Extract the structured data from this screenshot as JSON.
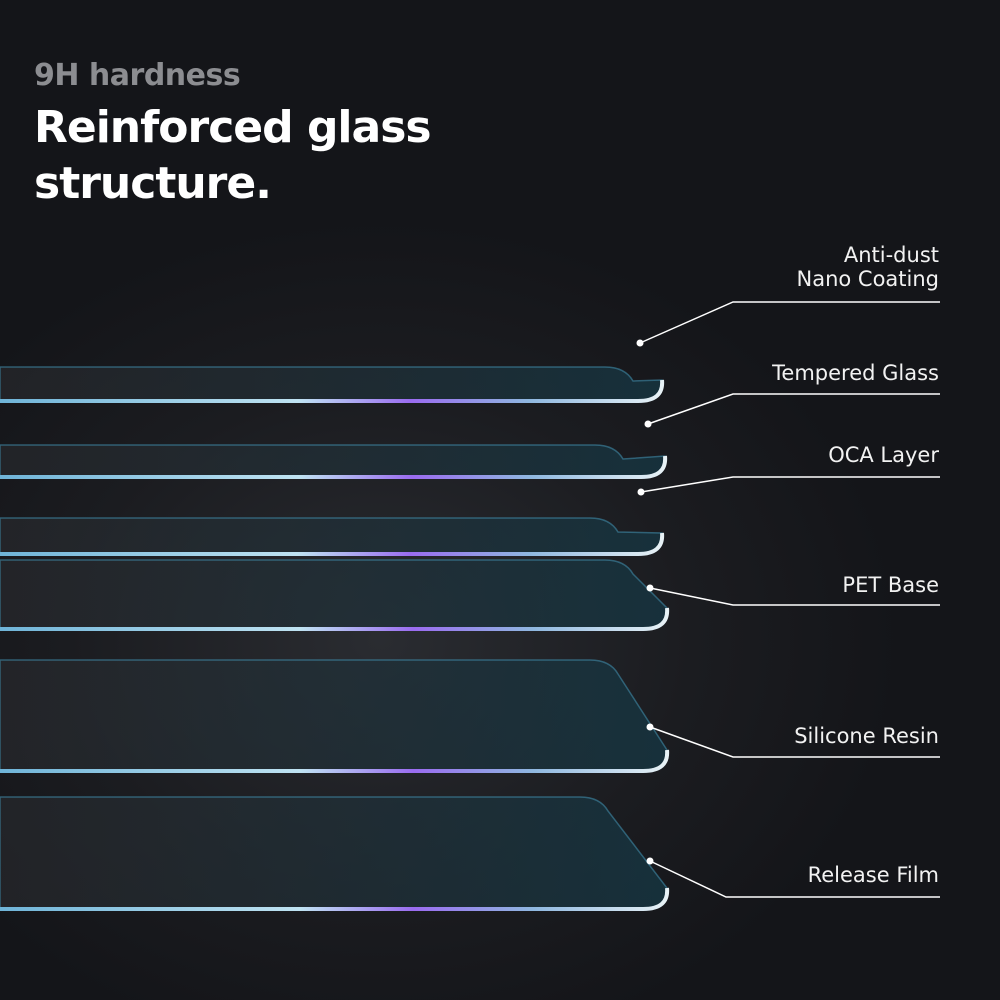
{
  "header": {
    "subtitle": "9H hardness",
    "title_line1": "Reinforced glass",
    "title_line2": "structure."
  },
  "layers": [
    {
      "label_line1": "Anti-dust",
      "label_line2": "Nano Coating"
    },
    {
      "label_line1": "Tempered Glass"
    },
    {
      "label_line1": "OCA Layer"
    },
    {
      "label_line1": "PET Base"
    },
    {
      "label_line1": "Silicone Resin"
    },
    {
      "label_line1": "Release Film"
    }
  ],
  "colors": {
    "background": "#16171b",
    "edge_blue": "#6fb4d8",
    "edge_purple": "#9a6cf0",
    "leader": "#ffffff",
    "subtitle": "#8c8d91"
  }
}
